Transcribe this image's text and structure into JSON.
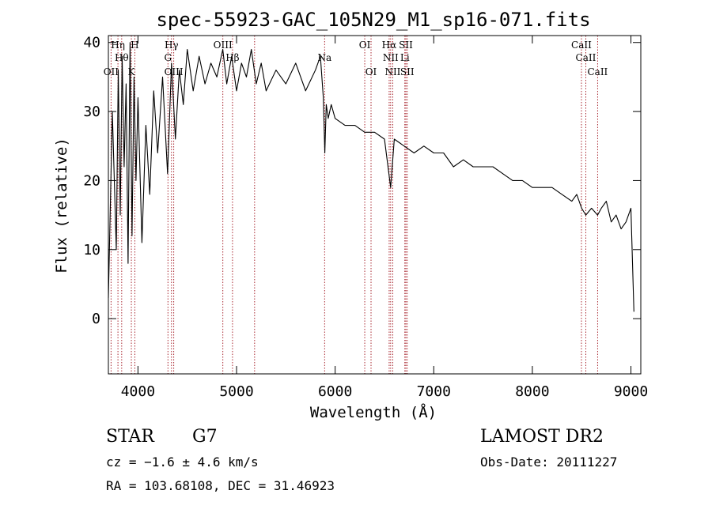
{
  "chart_data": {
    "type": "line",
    "title": "spec-55923-GAC_105N29_M1_sp16-071.fits",
    "xlabel": "Wavelength (Å)",
    "ylabel": "Flux (relative)",
    "xlim": [
      3700,
      9100
    ],
    "ylim": [
      -8,
      41
    ],
    "xticks": [
      {
        "v": 4000,
        "label": "4000"
      },
      {
        "v": 5000,
        "label": "5000"
      },
      {
        "v": 6000,
        "label": "6000"
      },
      {
        "v": 7000,
        "label": "7000"
      },
      {
        "v": 8000,
        "label": "8000"
      },
      {
        "v": 9000,
        "label": "9000"
      }
    ],
    "yticks": [
      {
        "v": 0,
        "label": "0"
      },
      {
        "v": 10,
        "label": "10"
      },
      {
        "v": 20,
        "label": "20"
      },
      {
        "v": 30,
        "label": "30"
      },
      {
        "v": 40,
        "label": "40"
      }
    ],
    "series": [
      {
        "x": [
          3700,
          3740,
          3780,
          3800,
          3820,
          3840,
          3860,
          3880,
          3900,
          3920,
          3940,
          3960,
          3980,
          4000,
          4040,
          4080,
          4120,
          4160,
          4200,
          4250,
          4300,
          4340,
          4380,
          4420,
          4460,
          4500,
          4560,
          4620,
          4680,
          4740,
          4800,
          4860,
          4900,
          4950,
          5000,
          5050,
          5100,
          5150,
          5200,
          5250,
          5300,
          5400,
          5500,
          5600,
          5700,
          5800,
          5850,
          5880,
          5895,
          5910,
          5930,
          5960,
          6000,
          6100,
          6200,
          6300,
          6400,
          6500,
          6563,
          6600,
          6700,
          6800,
          6900,
          7000,
          7100,
          7200,
          7300,
          7400,
          7500,
          7600,
          7700,
          7800,
          7900,
          8000,
          8100,
          8200,
          8300,
          8400,
          8450,
          8500,
          8542,
          8600,
          8662,
          8700,
          8750,
          8800,
          8850,
          8900,
          8950,
          9000,
          9030
        ],
        "y": [
          3,
          30,
          10,
          36,
          15,
          38,
          22,
          34,
          8,
          40,
          12,
          35,
          20,
          32,
          11,
          28,
          18,
          33,
          24,
          35,
          21,
          37,
          26,
          36,
          31,
          39,
          33,
          38,
          34,
          37,
          35,
          39,
          34,
          38,
          33,
          37,
          35,
          39,
          34,
          37,
          33,
          36,
          34,
          37,
          33,
          36,
          38,
          32,
          24,
          31,
          29,
          31,
          29,
          28,
          28,
          27,
          27,
          26,
          19,
          26,
          25,
          24,
          25,
          24,
          24,
          22,
          23,
          22,
          22,
          22,
          21,
          20,
          20,
          19,
          19,
          19,
          18,
          17,
          18,
          16,
          15,
          16,
          15,
          16,
          17,
          14,
          15,
          13,
          14,
          16,
          1
        ]
      }
    ],
    "lines": [
      {
        "wl": 3797,
        "label": "Hη",
        "row": 1
      },
      {
        "wl": 3835,
        "label": "Hθ",
        "row": 2
      },
      {
        "wl": 3727,
        "label": "OII",
        "row": 3
      },
      {
        "wl": 3933,
        "label": "K",
        "row": 3
      },
      {
        "wl": 3968,
        "label": "H",
        "row": 1
      },
      {
        "wl": 4340,
        "label": "Hγ",
        "row": 1
      },
      {
        "wl": 4304,
        "label": "G",
        "row": 2
      },
      {
        "wl": 4363,
        "label": "OIII",
        "row": 3
      },
      {
        "wl": 4861,
        "label": "OIII",
        "row": 1
      },
      {
        "wl": 4959,
        "label": "Hβ",
        "row": 2
      },
      {
        "wl": 5183,
        "label": "",
        "row": 0
      },
      {
        "wl": 5893,
        "label": "Na",
        "row": 2
      },
      {
        "wl": 6300,
        "label": "OI",
        "row": 1
      },
      {
        "wl": 6364,
        "label": "OI",
        "row": 3
      },
      {
        "wl": 6548,
        "label": "Hα",
        "row": 1
      },
      {
        "wl": 6563,
        "label": "NII",
        "row": 2
      },
      {
        "wl": 6584,
        "label": "NII",
        "row": 3
      },
      {
        "wl": 6717,
        "label": "SII",
        "row": 1
      },
      {
        "wl": 6707,
        "label": "Li",
        "row": 2
      },
      {
        "wl": 6731,
        "label": "SII",
        "row": 3
      },
      {
        "wl": 8498,
        "label": "CaII",
        "row": 1
      },
      {
        "wl": 8542,
        "label": "CaII",
        "row": 2
      },
      {
        "wl": 8662,
        "label": "CaII",
        "row": 3
      }
    ]
  },
  "info": {
    "class": "STAR",
    "subclass": "G7",
    "survey": "LAMOST DR2",
    "cz": "cz = −1.6 ± 4.6 km/s",
    "obs_date": "Obs-Date: 20111227",
    "radec": "RA = 103.68108, DEC =  31.46923"
  }
}
